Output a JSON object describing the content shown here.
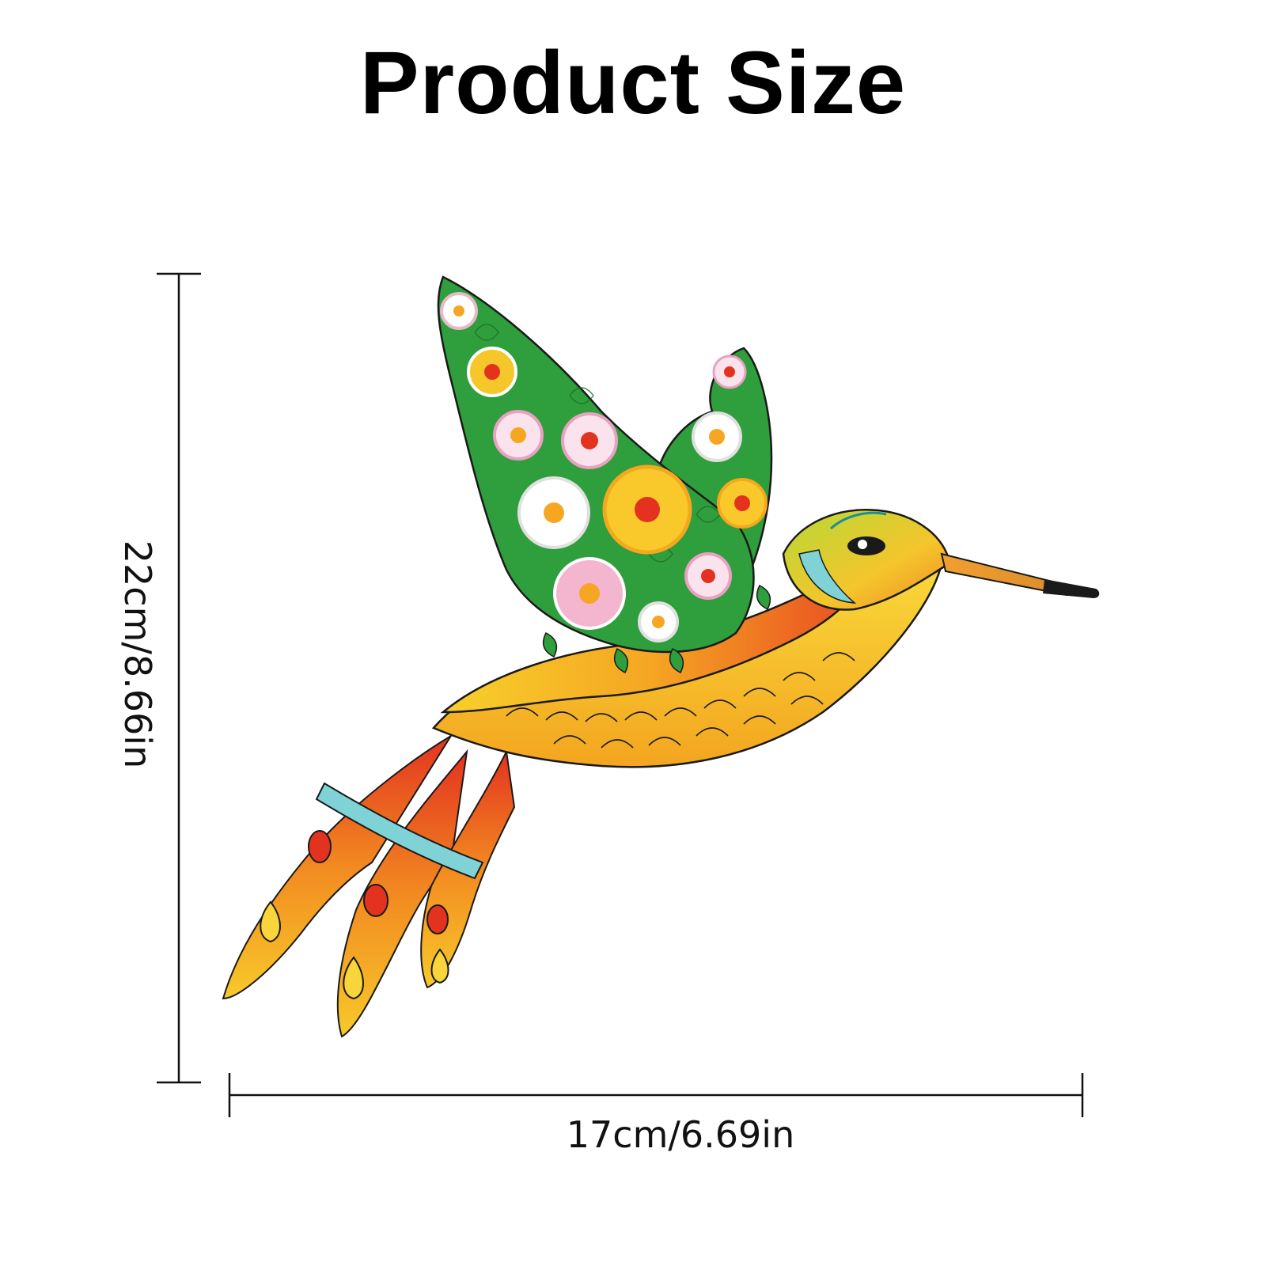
{
  "title": "Product Size",
  "dimensions": {
    "height_label": "22cm/8.66in",
    "width_label": "17cm/6.69in"
  },
  "product": {
    "icon": "hummingbird-illustration",
    "colors": {
      "wing_green": "#2f9e3c",
      "body_yellow": "#f7c928",
      "body_orange": "#f39a1e",
      "body_red": "#e2371f",
      "tail_cyan": "#7fd3d6",
      "outline": "#1a1a1a"
    }
  }
}
